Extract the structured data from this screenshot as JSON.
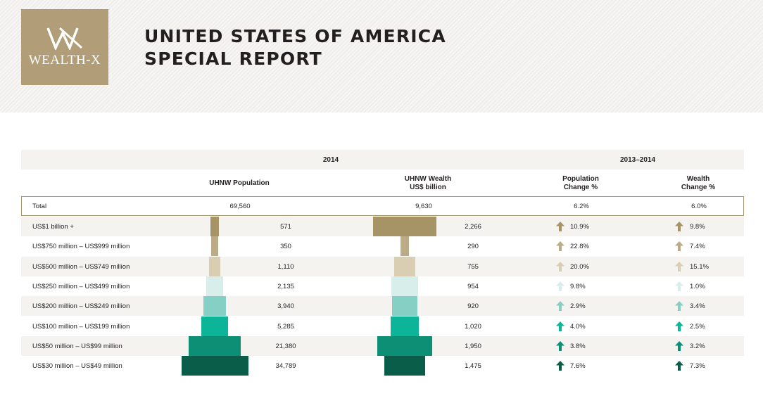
{
  "logo": {
    "text": "WEALTH-X",
    "color": "#b19d77"
  },
  "header": {
    "title_line1": "UNITED STATES OF AMERICA",
    "title_line2": "SPECIAL REPORT"
  },
  "table": {
    "group_2014": "2014",
    "group_change": "2013–2014",
    "col_population": "UHNW Population",
    "col_wealth_line1": "UHNW Wealth",
    "col_wealth_line2": "US$ billion",
    "col_pop_change_line1": "Population",
    "col_pop_change_line2": "Change %",
    "col_wealth_change_line1": "Wealth",
    "col_wealth_change_line2": "Change %",
    "total": {
      "label": "Total",
      "population": "69,560",
      "wealth": "9,630",
      "pop_change": "6.2%",
      "wealth_change": "6.0%"
    },
    "rows": [
      {
        "label": "US$1 billion +",
        "population": "571",
        "pop_value": 571,
        "wealth": "2,266",
        "wealth_value": 2266,
        "pop_change": "10.9%",
        "wealth_change": "9.8%",
        "color": "#a69466",
        "pop_dir": "up",
        "wealth_dir": "up"
      },
      {
        "label": "US$750 million – US$999 million",
        "population": "350",
        "pop_value": 350,
        "wealth": "290",
        "wealth_value": 290,
        "pop_change": "22.8%",
        "wealth_change": "7.4%",
        "color": "#bbab86",
        "pop_dir": "up",
        "wealth_dir": "up"
      },
      {
        "label": "US$500 million – US$749 million",
        "population": "1,110",
        "pop_value": 1110,
        "wealth": "755",
        "wealth_value": 755,
        "pop_change": "20.0%",
        "wealth_change": "15.1%",
        "color": "#d9cdb2",
        "pop_dir": "up",
        "wealth_dir": "up"
      },
      {
        "label": "US$250 million – US$499 million",
        "population": "2,135",
        "pop_value": 2135,
        "wealth": "954",
        "wealth_value": 954,
        "pop_change": "9.8%",
        "wealth_change": "1.0%",
        "color": "#d8eeea",
        "pop_dir": "up",
        "wealth_dir": "up"
      },
      {
        "label": "US$200 million – US$249 million",
        "population": "3,940",
        "pop_value": 3940,
        "wealth": "920",
        "wealth_value": 920,
        "pop_change": "2.9%",
        "wealth_change": "3.4%",
        "color": "#86cfc4",
        "pop_dir": "up",
        "wealth_dir": "up"
      },
      {
        "label": "US$100 million – US$199 million",
        "population": "5,285",
        "pop_value": 5285,
        "wealth": "1,020",
        "wealth_value": 1020,
        "pop_change": "4.0%",
        "wealth_change": "2.5%",
        "color": "#0cb597",
        "pop_dir": "up",
        "wealth_dir": "up"
      },
      {
        "label": "US$50 million – US$99 million",
        "population": "21,380",
        "pop_value": 21380,
        "wealth": "1,950",
        "wealth_value": 1950,
        "pop_change": "3.8%",
        "wealth_change": "3.2%",
        "color": "#0d8f76",
        "pop_dir": "up",
        "wealth_dir": "up"
      },
      {
        "label": "US$30 million – US$49 million",
        "population": "34,789",
        "pop_value": 34789,
        "wealth": "1,475",
        "wealth_value": 1475,
        "pop_change": "7.6%",
        "wealth_change": "7.3%",
        "color": "#0a5e49",
        "pop_dir": "up",
        "wealth_dir": "up"
      }
    ]
  }
}
